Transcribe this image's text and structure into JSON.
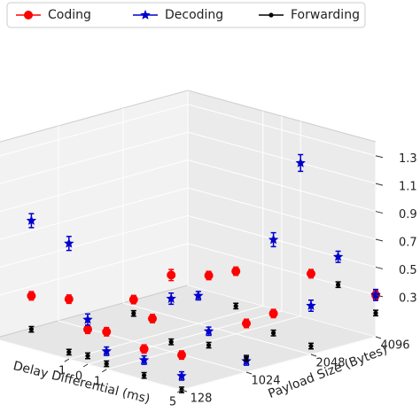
{
  "chart_data": {
    "type": "scatter3d",
    "xlabel": "Delay Differential (ms)",
    "ylabel": "Payload Size (Bytes)",
    "xlim": [
      -5,
      5
    ],
    "xticks": [
      -1,
      0,
      1,
      5
    ],
    "ycategories": [
      128,
      1024,
      2048,
      4096
    ],
    "zlim": [
      0,
      1.4
    ],
    "zticks": [
      0.3,
      0.5,
      0.7,
      0.9,
      1.1,
      1.3
    ],
    "grid": true,
    "legend": "top",
    "series": [
      {
        "name": "Coding",
        "color": "#ff0000",
        "marker": "circle",
        "x": [
          -5,
          -3,
          -1,
          0,
          1,
          3,
          5,
          -1,
          0,
          1,
          3,
          5,
          1,
          3,
          5,
          5
        ],
        "y": [
          128,
          128,
          128,
          128,
          128,
          128,
          128,
          1024,
          1024,
          1024,
          1024,
          1024,
          2048,
          2048,
          2048,
          4096
        ],
        "z": [
          0.45,
          0.38,
          0.43,
          0.25,
          0.27,
          0.22,
          0.25,
          0.3,
          0.2,
          0.55,
          0.62,
          0.35,
          0.45,
          0.22,
          0.58,
          0.3
        ],
        "err": [
          0.04,
          0.03,
          0.03,
          0.03,
          0.03,
          0.03,
          0.03,
          0.03,
          0.03,
          0.04,
          0.03,
          0.03,
          0.03,
          0.03,
          0.03,
          0.03
        ]
      },
      {
        "name": "Decoding",
        "color": "#0000cc",
        "marker": "star",
        "x": [
          -5,
          -3,
          -1,
          0,
          1,
          3,
          5,
          1,
          3,
          5,
          3,
          5,
          5,
          1,
          -1,
          3
        ],
        "y": [
          128,
          128,
          128,
          128,
          128,
          128,
          128,
          1024,
          1024,
          1024,
          2048,
          2048,
          4096,
          4096,
          2048,
          4096
        ],
        "z": [
          0.95,
          0.92,
          0.83,
          0.32,
          0.13,
          0.14,
          0.1,
          0.38,
          0.22,
          0.08,
          0.75,
          0.35,
          0.3,
          1.1,
          0.2,
          0.5
        ],
        "err": [
          0.07,
          0.05,
          0.05,
          0.04,
          0.03,
          0.03,
          0.03,
          0.04,
          0.03,
          0.03,
          0.05,
          0.04,
          0.04,
          0.06,
          0.03,
          0.04
        ]
      },
      {
        "name": "Forwarding",
        "color": "#000000",
        "marker": "dot",
        "x": [
          -5,
          -3,
          -1,
          0,
          1,
          3,
          5,
          -1,
          1,
          3,
          5,
          1,
          3,
          5,
          5,
          3
        ],
        "y": [
          128,
          128,
          128,
          128,
          128,
          128,
          128,
          1024,
          1024,
          1024,
          1024,
          2048,
          2048,
          2048,
          4096,
          4096
        ],
        "z": [
          0.17,
          0.14,
          0.05,
          0.06,
          0.04,
          0.03,
          0.0,
          0.2,
          0.07,
          0.12,
          0.1,
          0.2,
          0.08,
          0.06,
          0.17,
          0.3
        ],
        "err": [
          0.02,
          0.02,
          0.02,
          0.02,
          0.02,
          0.02,
          0.02,
          0.02,
          0.02,
          0.02,
          0.02,
          0.02,
          0.02,
          0.02,
          0.02,
          0.02
        ]
      }
    ]
  }
}
